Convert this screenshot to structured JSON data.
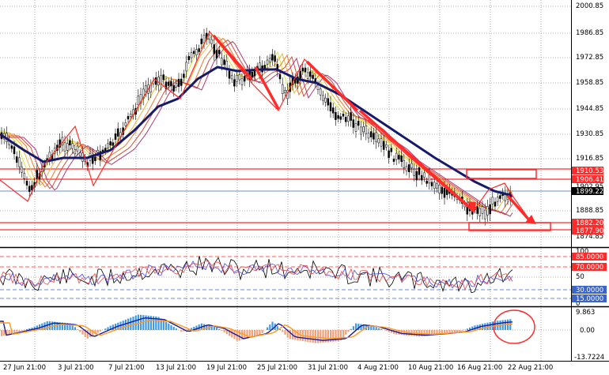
{
  "chart": {
    "type": "candlestick-terminal",
    "colors": {
      "bull": "#000000",
      "bear": "#000000",
      "ma_slow": "#151a6b",
      "ribbon": [
        "#d8e93a",
        "#f2b43a",
        "#ee7a2a",
        "#d84a33",
        "#b03a7a"
      ],
      "grid": "#6a6a6a",
      "annotation": "#ff2a2a",
      "hline_red": "#ff2a2a",
      "hline_blue": "#3b64c8",
      "rsi_black": "#000000",
      "rsi_blue": "#4a4ae6",
      "rsi_red": "#e64a4a",
      "macd_bar_pos": "#3f9be8",
      "macd_bar_neg": "#f2a07a",
      "macd_line": "#1b1b9a",
      "signal_line": "#ff9a1f"
    }
  },
  "price_axis": {
    "labels": [
      "2000.85",
      "1986.85",
      "1972.85",
      "1958.85",
      "1944.85",
      "1930.85",
      "1916.85",
      "1888.85",
      "1874.85"
    ],
    "boxed": [
      {
        "text": "1910.53",
        "kind": "red"
      },
      {
        "text": "1906.41",
        "kind": "red"
      },
      {
        "text": "1902.95",
        "kind": "plain"
      },
      {
        "text": "1899.22",
        "kind": "black"
      },
      {
        "text": "1882.20",
        "kind": "red"
      },
      {
        "text": "1877.90",
        "kind": "red"
      }
    ]
  },
  "rsi_axis": {
    "labels": [
      "100",
      "50",
      "0"
    ],
    "boxed": [
      {
        "text": "85.0000",
        "kind": "red"
      },
      {
        "text": "70.0000",
        "kind": "red"
      },
      {
        "text": "30.0000",
        "kind": "blue"
      },
      {
        "text": "15.0000",
        "kind": "blue"
      }
    ]
  },
  "macd_axis": {
    "labels": [
      "9.863",
      "0.00",
      "-13.7224"
    ]
  },
  "time_axis": {
    "labels": [
      "27 Jun 21:00",
      "3 Jul 21:00",
      "7 Jul 21:00",
      "13 Jul 21:00",
      "19 Jul 21:00",
      "25 Jul 21:00",
      "31 Jul 21:00",
      "4 Aug 21:00",
      "10 Aug 21:00",
      "16 Aug 21:00",
      "22 Aug 21:00"
    ]
  }
}
